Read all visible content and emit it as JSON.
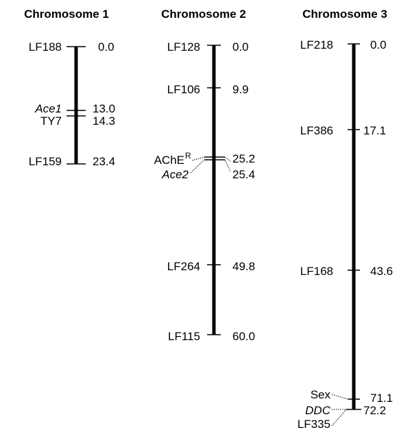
{
  "chromosomes": [
    {
      "title": "Chromosome 1",
      "max_cm": 23.4,
      "markers": [
        {
          "name": "LF188",
          "cm": 0.0,
          "label": "0.0"
        },
        {
          "name": "Ace1",
          "cm": 13.0,
          "label": "13.0",
          "italic": true
        },
        {
          "name": "TY7",
          "cm": 14.3,
          "label": "14.3"
        },
        {
          "name": "LF159",
          "cm": 23.4,
          "label": "23.4"
        }
      ]
    },
    {
      "title": "Chromosome 2",
      "max_cm": 60.0,
      "markers": [
        {
          "name": "LF128",
          "cm": 0.0,
          "label": "0.0"
        },
        {
          "name": "LF106",
          "cm": 9.9,
          "label": "9.9"
        },
        {
          "name": "AChE",
          "superscript": "R",
          "cm": 25.2,
          "label": "25.2"
        },
        {
          "name": "Ace2",
          "cm": 25.4,
          "label": "25.4",
          "italic": true
        },
        {
          "name": "LF264",
          "cm": 49.8,
          "label": "49.8"
        },
        {
          "name": "LF115",
          "cm": 60.0,
          "label": "60.0"
        }
      ]
    },
    {
      "title": "Chromosome 3",
      "max_cm": 72.2,
      "markers": [
        {
          "name": "LF218",
          "cm": 0.0,
          "label": "0.0"
        },
        {
          "name": "LF386",
          "cm": 17.1,
          "label": "17.1"
        },
        {
          "name": "LF168",
          "cm": 43.6,
          "label": "43.6"
        },
        {
          "name": "Sex",
          "cm": 71.1,
          "label": "71.1"
        },
        {
          "name": "DDC",
          "cm": 72.2,
          "label": "72.2",
          "italic": true
        },
        {
          "name": "LF335",
          "cm": 72.2,
          "label": "",
          "italic": false
        }
      ]
    }
  ]
}
